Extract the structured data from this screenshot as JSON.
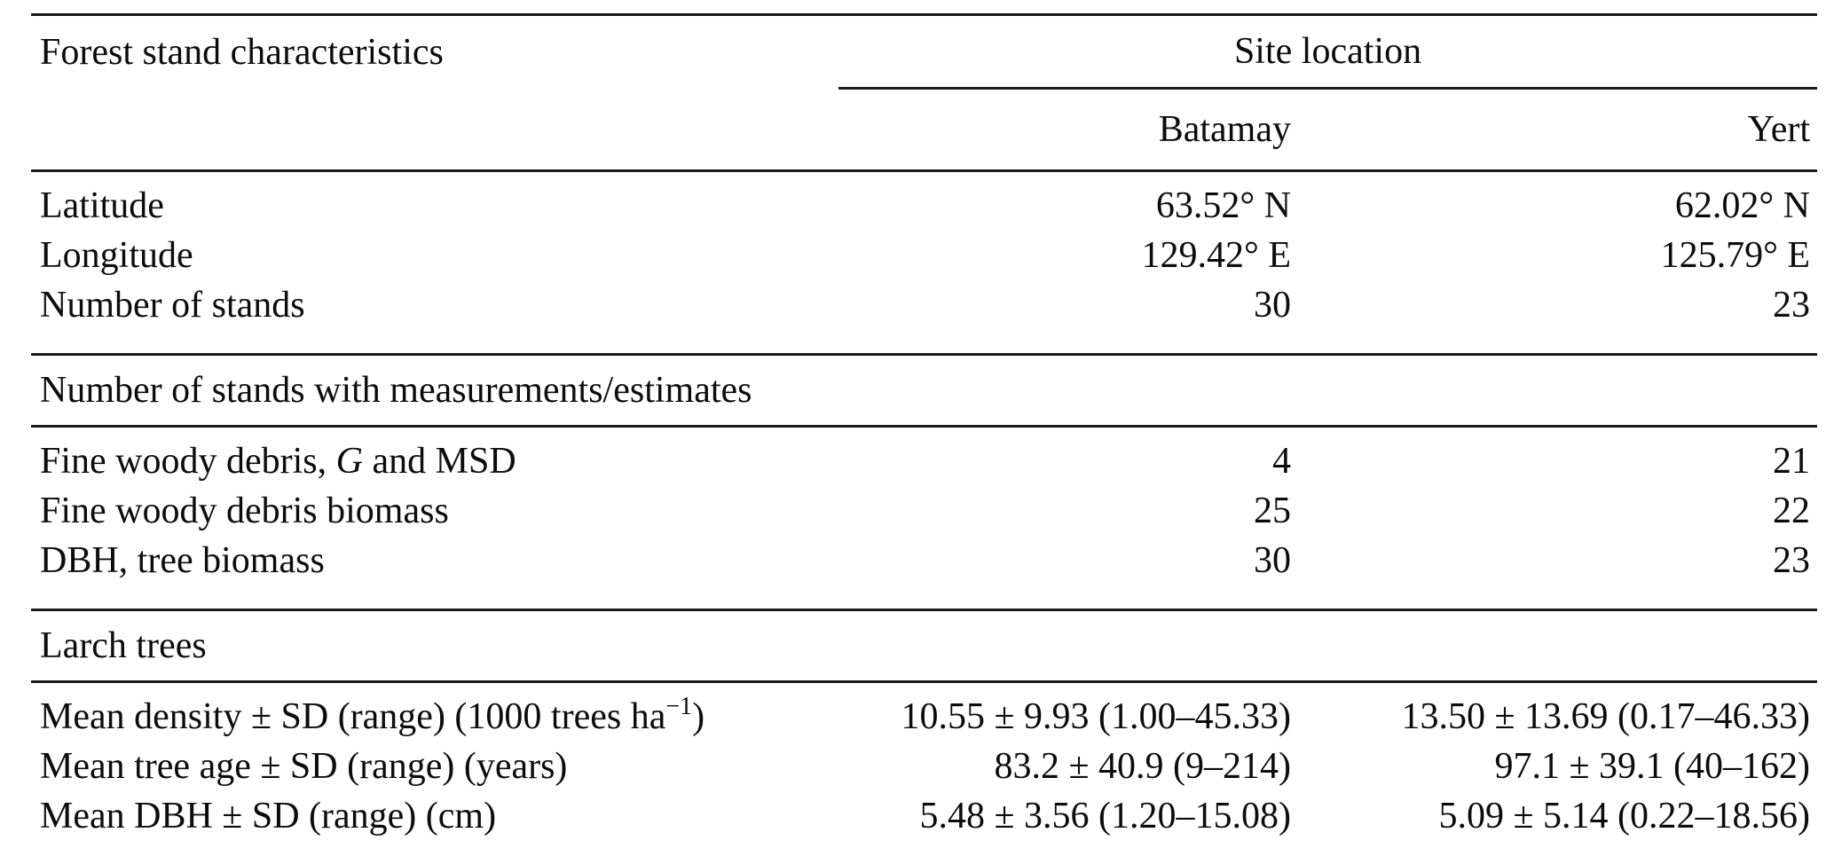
{
  "page": {
    "background_color": "#ffffff",
    "text_color": "#0c0c0c",
    "rule_color": "#1a1a1a"
  },
  "table": {
    "header": {
      "row_label_column": "Forest stand characteristics",
      "group_label": "Site location",
      "columns": [
        "Batamay",
        "Yert"
      ]
    },
    "sections": [
      {
        "rows": [
          {
            "label": "Latitude",
            "batamay": "63.52° N",
            "yert": "62.02° N"
          },
          {
            "label": "Longitude",
            "batamay": "129.42° E",
            "yert": "125.79° E"
          },
          {
            "label": "Number of stands",
            "batamay": "30",
            "yert": "23"
          }
        ]
      },
      {
        "title": "Number of stands with measurements/estimates",
        "rows": [
          {
            "label_pre": "Fine woody debris, ",
            "label_italic": "G",
            "label_post": " and MSD",
            "batamay": "4",
            "yert": "21"
          },
          {
            "label": "Fine woody debris biomass",
            "batamay": "25",
            "yert": "22"
          },
          {
            "label": "DBH, tree biomass",
            "batamay": "30",
            "yert": "23"
          }
        ]
      },
      {
        "title": "Larch trees",
        "rows": [
          {
            "label_pre": "Mean density ± SD (range) (1000 trees ha",
            "label_sup": "−1",
            "label_post": ")",
            "batamay": "10.55 ± 9.93 (1.00–45.33)",
            "yert": "13.50 ± 13.69 (0.17–46.33)"
          },
          {
            "label": "Mean tree age ± SD (range) (years)",
            "batamay": "83.2 ± 40.9 (9–214)",
            "yert": "97.1 ± 39.1 (40–162)"
          },
          {
            "label": "Mean DBH ± SD (range) (cm)",
            "batamay": "5.48 ± 3.56 (1.20–15.08)",
            "yert": "5.09 ± 5.14 (0.22–18.56)"
          }
        ]
      }
    ]
  }
}
